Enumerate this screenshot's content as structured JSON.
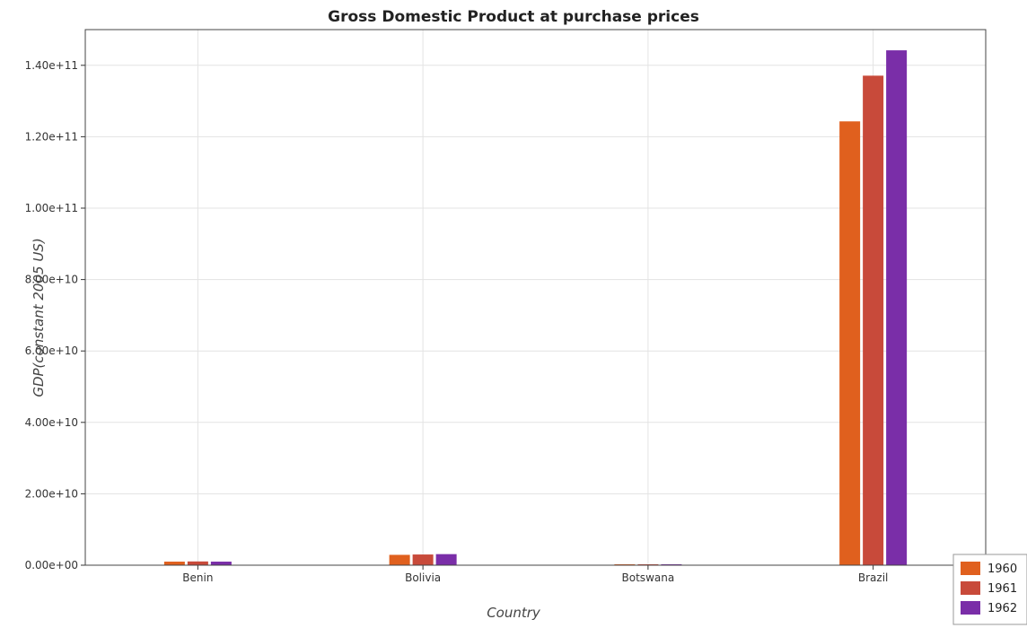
{
  "chart_data": {
    "type": "bar",
    "title": "Gross Domestic Product at purchase prices",
    "xlabel": "Country",
    "ylabel": "GDP(constant 2005 US)",
    "categories": [
      "Benin",
      "Bolivia",
      "Botswana",
      "Brazil"
    ],
    "series": [
      {
        "name": "1960",
        "color": "#e0601e",
        "values": [
          1000000000.0,
          2900000000.0,
          180000000.0,
          124300000000.0
        ]
      },
      {
        "name": "1961",
        "color": "#c84a3a",
        "values": [
          1050000000.0,
          3000000000.0,
          200000000.0,
          137100000000.0
        ]
      },
      {
        "name": "1962",
        "color": "#7a2ea8",
        "values": [
          1000000000.0,
          3100000000.0,
          210000000.0,
          144200000000.0
        ]
      }
    ],
    "ylim": [
      0,
      150000000000.0
    ],
    "yticks": [
      0,
      20000000000.0,
      40000000000.0,
      60000000000.0,
      80000000000.0,
      100000000000.0,
      120000000000.0,
      140000000000.0
    ],
    "ytick_labels": [
      "0.00e+00",
      "2.00e+10",
      "4.00e+10",
      "6.00e+10",
      "8.00e+10",
      "1.00e+11",
      "1.20e+11",
      "1.40e+11"
    ],
    "grid": true,
    "legend_position": "bottom-right"
  }
}
